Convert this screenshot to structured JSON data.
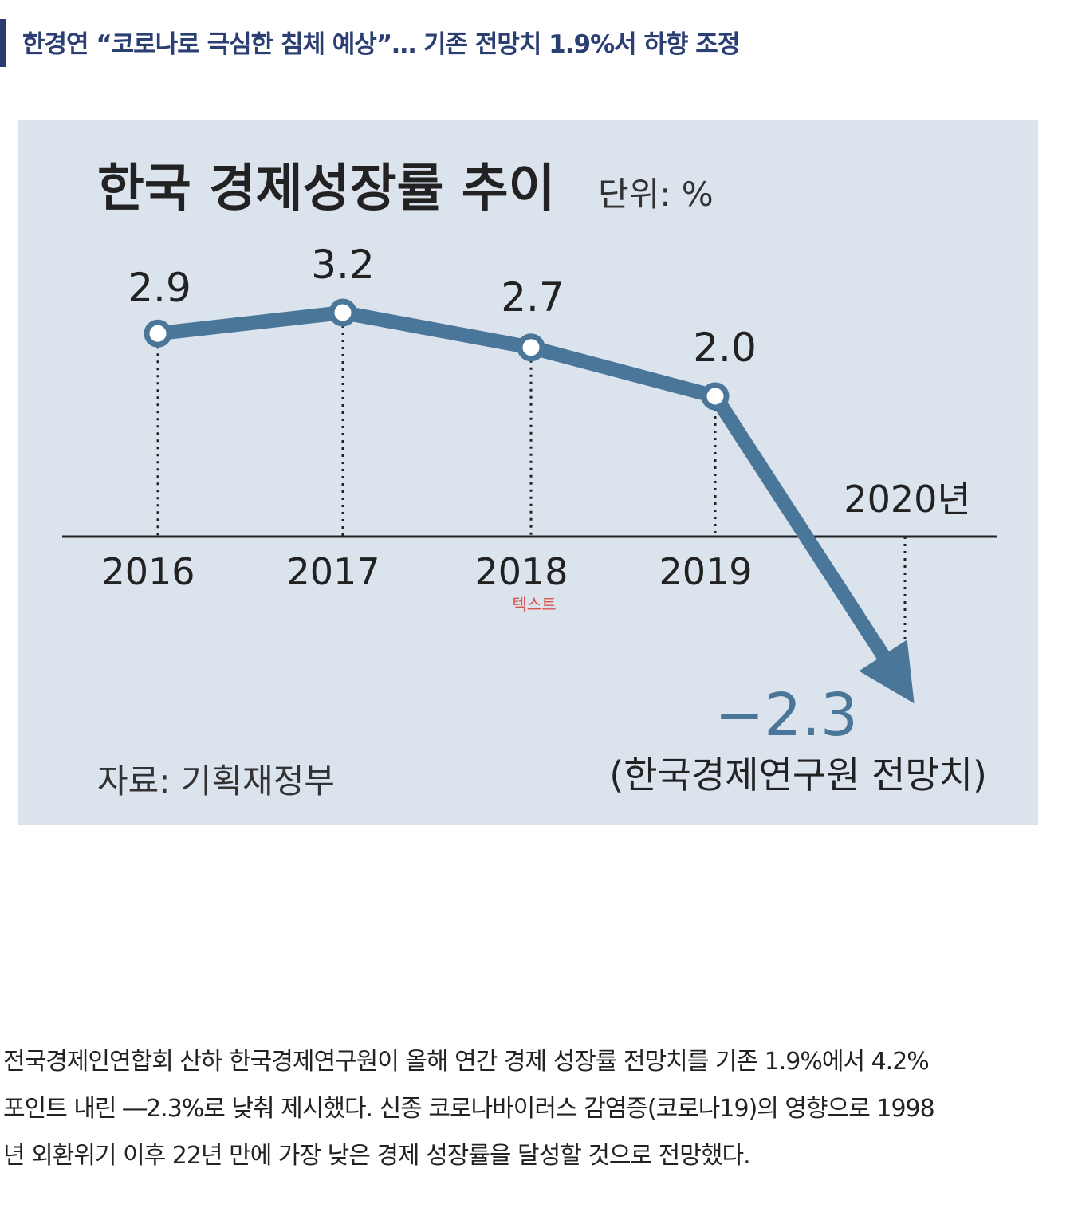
{
  "headline": "한경연 “코로나로 극심한 침체 예상”… 기존 전망치 1.9%서 하향 조정",
  "chart_data": {
    "type": "line",
    "title": "한국 경제성장률 추이",
    "unit_label": "단위: %",
    "categories": [
      "2016",
      "2017",
      "2018",
      "2019",
      "2020년"
    ],
    "series": [
      {
        "values": [
          2.9,
          3.2,
          2.7,
          2.0,
          -2.3
        ]
      }
    ],
    "value_labels": [
      "2.9",
      "3.2",
      "2.7",
      "2.0",
      "−2.3"
    ],
    "forecast_note": "(한국경제연구원 전망치)",
    "source": "자료: 기획재정부",
    "overlay_text": "텍스트",
    "line_color": "#4a7699",
    "background_color": "#dbe3ed"
  },
  "body": {
    "lines": [
      "전국경제인연합회 산하 한국경제연구원이 올해 연간 경제 성장률 전망치를 기존 1.9%에서 4.2%",
      "포인트 내린 ―2.3%로 낮춰 제시했다. 신종 코로나바이러스 감염증(코로나19)의 영향으로 1998",
      "년 외환위기 이후 22년 만에 가장 낮은 경제 성장률을 달성할 것으로 전망했다."
    ]
  }
}
